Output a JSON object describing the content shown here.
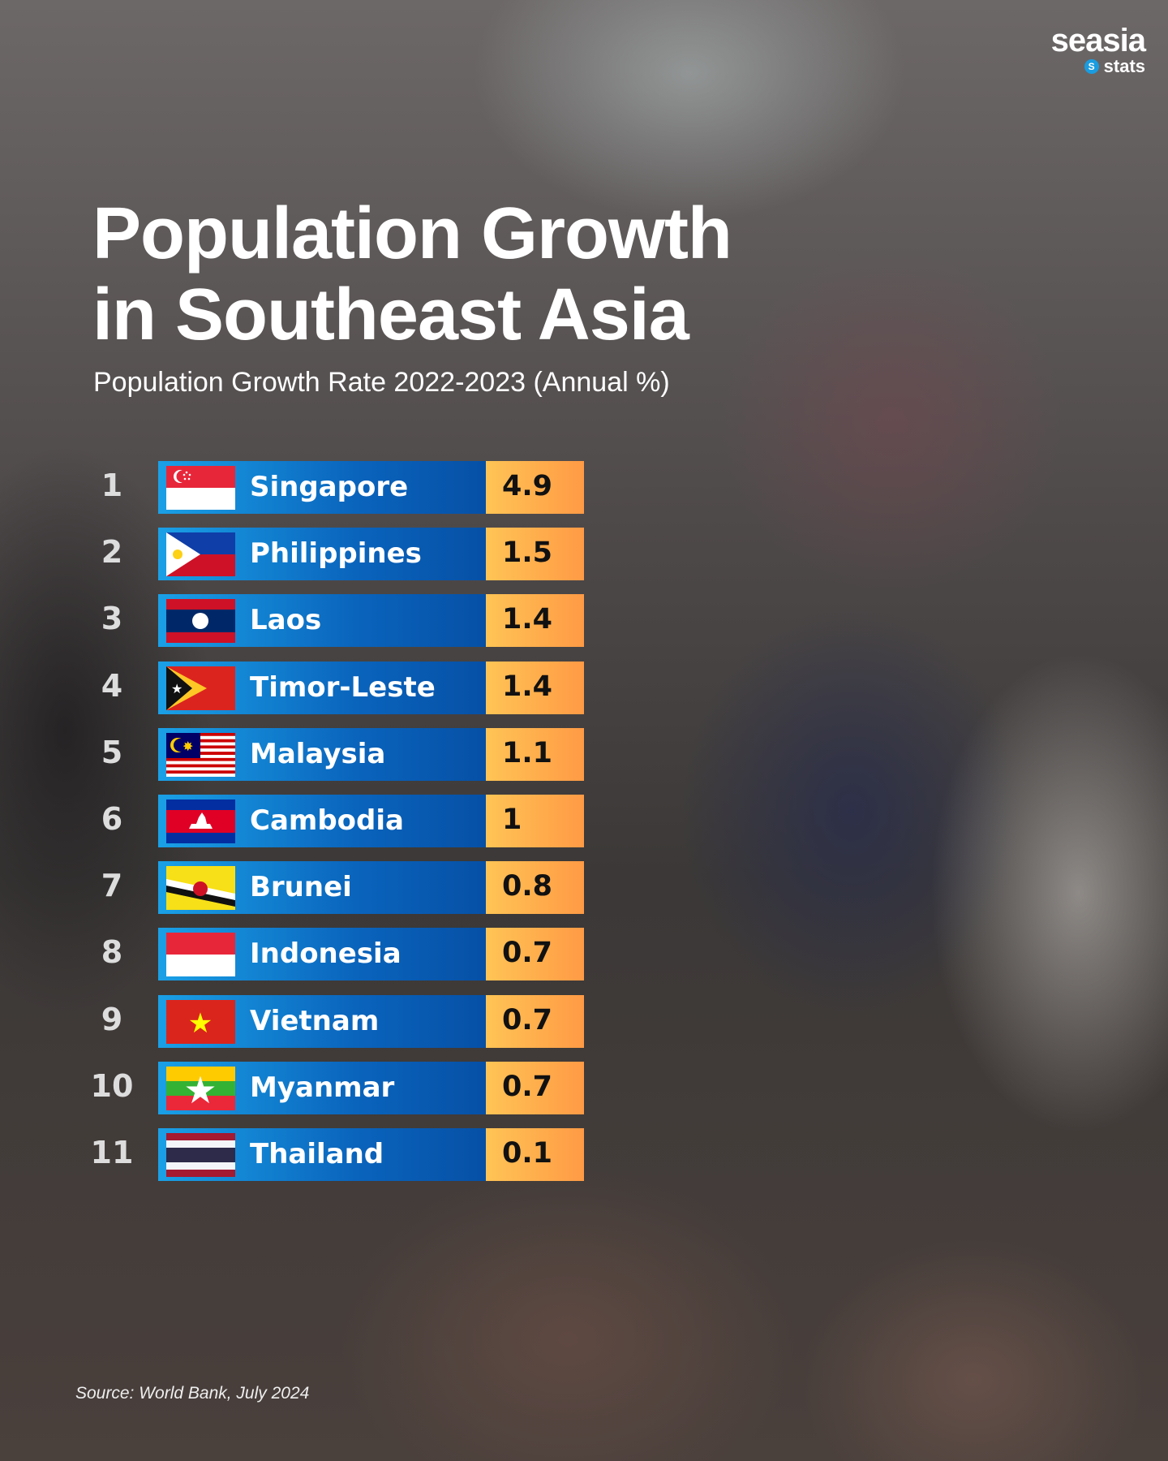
{
  "brand": {
    "name": "seasia",
    "sub": "stats",
    "badge": "S"
  },
  "title": {
    "line1": "Population Growth",
    "line2": "in Southeast Asia"
  },
  "subtitle": "Population Growth Rate 2022-2023 (Annual %)",
  "rows": [
    {
      "rank": "1",
      "country": "Singapore",
      "value": "4.9",
      "flag": "flag-singapore"
    },
    {
      "rank": "2",
      "country": "Philippines",
      "value": "1.5",
      "flag": "flag-philippines"
    },
    {
      "rank": "3",
      "country": "Laos",
      "value": "1.4",
      "flag": "flag-laos"
    },
    {
      "rank": "4",
      "country": "Timor-Leste",
      "value": "1.4",
      "flag": "flag-timor-leste"
    },
    {
      "rank": "5",
      "country": "Malaysia",
      "value": "1.1",
      "flag": "flag-malaysia"
    },
    {
      "rank": "6",
      "country": "Cambodia",
      "value": "1",
      "flag": "flag-cambodia"
    },
    {
      "rank": "7",
      "country": "Brunei",
      "value": "0.8",
      "flag": "flag-brunei"
    },
    {
      "rank": "8",
      "country": "Indonesia",
      "value": "0.7",
      "flag": "flag-indonesia"
    },
    {
      "rank": "9",
      "country": "Vietnam",
      "value": "0.7",
      "flag": "flag-vietnam"
    },
    {
      "rank": "10",
      "country": "Myanmar",
      "value": "0.7",
      "flag": "flag-myanmar"
    },
    {
      "rank": "11",
      "country": "Thailand",
      "value": "0.1",
      "flag": "flag-thailand"
    }
  ],
  "source": "Source: World Bank, July 2024",
  "colors": {
    "bar_start": "#1aa0e6",
    "bar_end": "#0650a6",
    "value_start": "#ffc455",
    "value_end": "#ff9a45"
  }
}
